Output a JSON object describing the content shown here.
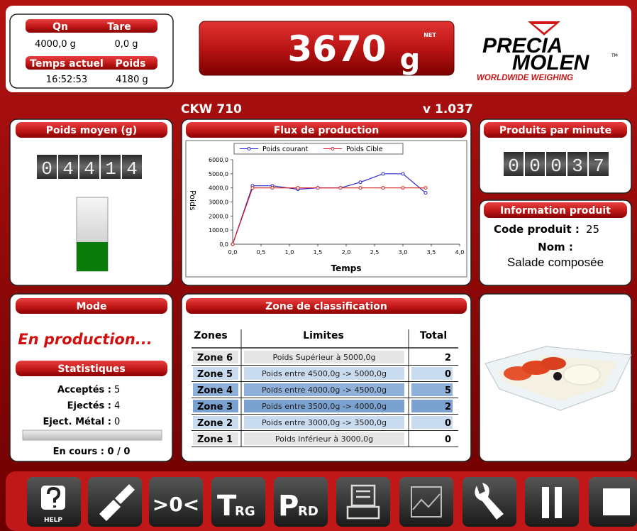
{
  "header": {
    "qn_label": "Qn",
    "tare_label": "Tare",
    "qn_value": "4000,0 g",
    "tare_value": "0,0 g",
    "time_label": "Temps actuel",
    "weight_label": "Poids",
    "time_value": "16:52:53",
    "weight_value": "4180 g",
    "display_value": "3670",
    "display_unit": "g",
    "display_status": "NET",
    "logo": {
      "line1": "PRECIA",
      "line2": "MOLEN",
      "tm": "TM",
      "tagline": "WORLDWIDE WEIGHING"
    }
  },
  "machine": {
    "model": "CKW 710",
    "version": "v 1.037"
  },
  "average_weight": {
    "title": "Poids moyen (g)",
    "counter": "04414"
  },
  "flux_chart": {
    "type": "line",
    "title": "Flux de production",
    "x_label": "Temps",
    "y_label": "Poids",
    "x": [
      0,
      0.35,
      0.7,
      1.15,
      1.5,
      1.9,
      2.25,
      2.65,
      3.0,
      3.4
    ],
    "series": [
      {
        "name": "Poids courant",
        "color": "#2a2ad0",
        "values": [
          0,
          4150,
          4150,
          3900,
          4000,
          4000,
          4400,
          5000,
          5000,
          3650
        ]
      },
      {
        "name": "Poids Cible",
        "color": "#d82020",
        "values": [
          0,
          4000,
          4000,
          4000,
          4000,
          4000,
          4000,
          4000,
          4000,
          4000
        ]
      }
    ],
    "xlim": [
      0,
      4
    ],
    "ylim": [
      0,
      6000
    ],
    "xticks": [
      {
        "value": 0,
        "label": "0,0"
      },
      {
        "value": 0.5,
        "label": "0,5"
      },
      {
        "value": 1,
        "label": "1,0"
      },
      {
        "value": 1.5,
        "label": "1,5"
      },
      {
        "value": 2,
        "label": "2,0"
      },
      {
        "value": 2.5,
        "label": "2,5"
      },
      {
        "value": 3,
        "label": "3,0"
      },
      {
        "value": 3.5,
        "label": "3,5"
      },
      {
        "value": 4,
        "label": "4,0"
      }
    ],
    "yticks": [
      {
        "value": 0,
        "label": "0,0"
      },
      {
        "value": 1000,
        "label": "1000,0"
      },
      {
        "value": 2000,
        "label": "2000,0"
      },
      {
        "value": 3000,
        "label": "3000,0"
      },
      {
        "value": 4000,
        "label": "4000,0"
      },
      {
        "value": 5000,
        "label": "5000,0"
      },
      {
        "value": 6000,
        "label": "6000,0"
      }
    ],
    "grid": false
  },
  "rate": {
    "title": "Produits par minute",
    "counter": "00037"
  },
  "product": {
    "title": "Information produit",
    "code_label": "Code produit :",
    "code": "25",
    "name_label": "Nom :",
    "name": "Salade composée"
  },
  "mode": {
    "title": "Mode",
    "status": "En production..."
  },
  "stats": {
    "title": "Statistiques",
    "rows": [
      [
        "Acceptés :",
        5
      ],
      [
        "Ejectés :",
        4
      ],
      [
        "Eject. Métal :",
        0
      ]
    ],
    "in_progress": "En cours : 0 / 0"
  },
  "classification": {
    "title": "Zone de classification",
    "headers": [
      "Zones",
      "Limites",
      "Total"
    ],
    "rows": [
      [
        "Zone 6",
        "Poids Supérieur à  5000,0g",
        2
      ],
      [
        "Zone 5",
        "Poids entre 4500,0g -> 5000,0g",
        0
      ],
      [
        "Zone 4",
        "Poids entre 4000,0g -> 4500,0g",
        5
      ],
      [
        "Zone 3",
        "Poids entre 3500,0g -> 4000,0g",
        2
      ],
      [
        "Zone 2",
        "Poids entre 3000,0g -> 3500,0g",
        0
      ],
      [
        "Zone 1",
        "Poids Inférieur à  3000,0g",
        0
      ]
    ]
  },
  "toolbar": {
    "help": "HELP",
    "zero": ">0<",
    "tare": {
      "main": "T",
      "sub": "RG"
    },
    "preset": {
      "main": "P",
      "sub": "RD"
    }
  }
}
